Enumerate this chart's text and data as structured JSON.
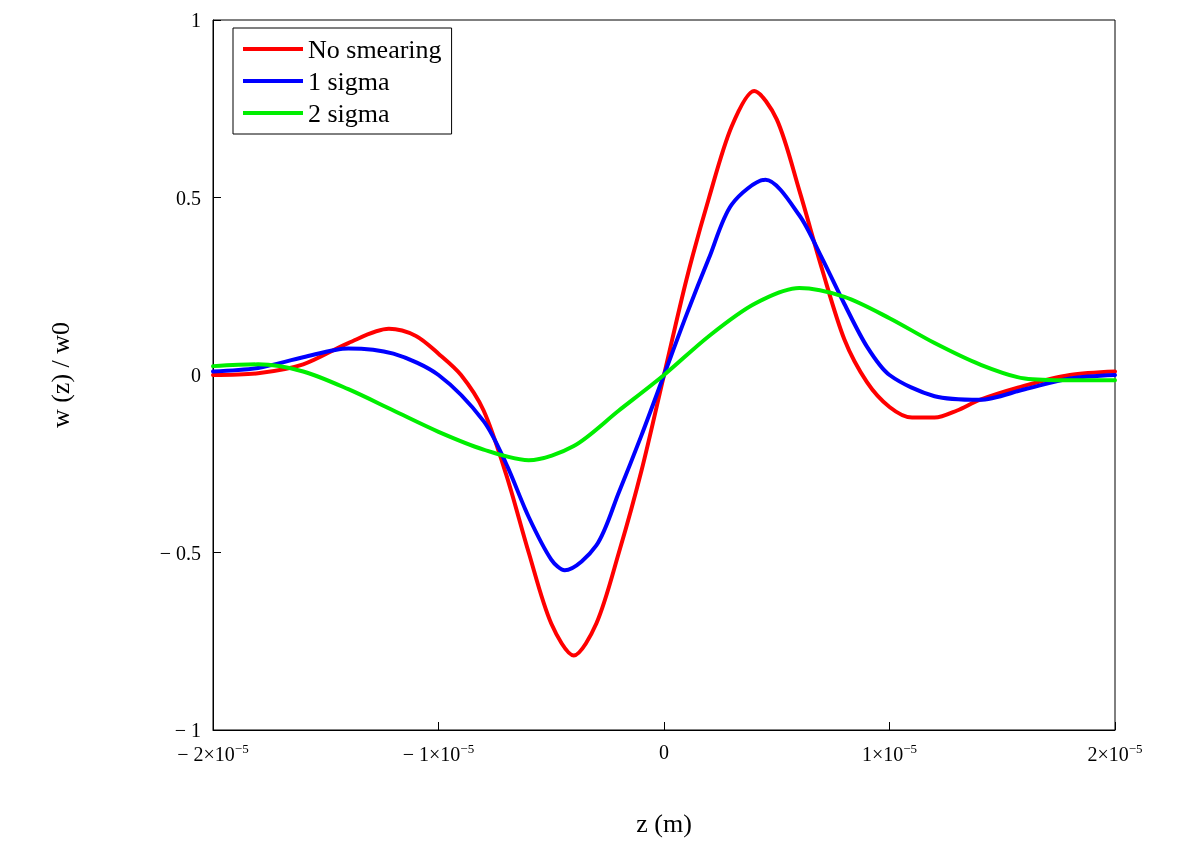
{
  "chart_data": {
    "type": "line",
    "xlabel": "z (m)",
    "ylabel": "w (z) / w0",
    "xlim": [
      -2e-05,
      2e-05
    ],
    "ylim": [
      -1,
      1
    ],
    "xticks": [
      {
        "value": -2e-05,
        "label": "− 2×10$^{−5}$"
      },
      {
        "value": -1e-05,
        "label": "− 1×10$^{−5}$"
      },
      {
        "value": 0,
        "label": "0"
      },
      {
        "value": 1e-05,
        "label": "1×10$^{−5}$"
      },
      {
        "value": 2e-05,
        "label": "2×10$^{−5}$"
      }
    ],
    "yticks": [
      {
        "value": -1,
        "label": "− 1"
      },
      {
        "value": -0.5,
        "label": "− 0.5"
      },
      0,
      0.5,
      1
    ],
    "grid": false,
    "legend": "top left",
    "marker": "none",
    "line_style": "solid",
    "series": [
      {
        "name": "No smearing",
        "color": "#ff0000",
        "x": [
          -2e-05,
          -1.8e-05,
          -1.6e-05,
          -1.4e-05,
          -1.22e-05,
          -1.1e-05,
          -1e-05,
          -9e-06,
          -8e-06,
          -7e-06,
          -6e-06,
          -5e-06,
          -4e-06,
          -3e-06,
          -2e-06,
          -1e-06,
          0,
          1e-06,
          2e-06,
          3e-06,
          4e-06,
          5e-06,
          6e-06,
          7e-06,
          8e-06,
          9e-06,
          1e-05,
          1.1e-05,
          1.2e-05,
          1.3e-05,
          1.4e-05,
          1.6e-05,
          1.8e-05,
          2e-05
        ],
        "values": [
          0,
          0.005,
          0.03,
          0.09,
          0.13,
          0.11,
          0.06,
          0,
          -0.1,
          -0.28,
          -0.5,
          -0.7,
          -0.79,
          -0.7,
          -0.5,
          -0.27,
          0,
          0.27,
          0.5,
          0.7,
          0.8,
          0.72,
          0.52,
          0.3,
          0.1,
          -0.02,
          -0.09,
          -0.12,
          -0.12,
          -0.1,
          -0.07,
          -0.03,
          0,
          0.01
        ]
      },
      {
        "name": "1 sigma",
        "color": "#0000ff",
        "x": [
          -2e-05,
          -1.8e-05,
          -1.6e-05,
          -1.4e-05,
          -1.2e-05,
          -1e-05,
          -8e-06,
          -7e-06,
          -6e-06,
          -5e-06,
          -4.4e-06,
          -3e-06,
          -2e-06,
          -1e-06,
          0,
          1e-06,
          2e-06,
          3e-06,
          4.5e-06,
          6e-06,
          7e-06,
          8e-06,
          9e-06,
          1e-05,
          1.2e-05,
          1.4e-05,
          1.6e-05,
          1.8e-05,
          2e-05
        ],
        "values": [
          0.01,
          0.02,
          0.05,
          0.075,
          0.06,
          0,
          -0.13,
          -0.25,
          -0.4,
          -0.52,
          -0.55,
          -0.48,
          -0.33,
          -0.17,
          0,
          0.17,
          0.33,
          0.48,
          0.55,
          0.45,
          0.33,
          0.2,
          0.08,
          0,
          -0.06,
          -0.07,
          -0.04,
          -0.01,
          0
        ]
      },
      {
        "name": "2 sigma",
        "color": "#00ee00",
        "x": [
          -2e-05,
          -1.8e-05,
          -1.6e-05,
          -1.4e-05,
          -1.2e-05,
          -1e-05,
          -8e-06,
          -6e-06,
          -4e-06,
          -2e-06,
          0,
          2e-06,
          4e-06,
          6e-06,
          8e-06,
          1e-05,
          1.2e-05,
          1.4e-05,
          1.6e-05,
          1.8e-05,
          2e-05
        ],
        "values": [
          0.025,
          0.03,
          0.01,
          -0.04,
          -0.1,
          -0.16,
          -0.21,
          -0.24,
          -0.2,
          -0.1,
          0,
          0.11,
          0.2,
          0.245,
          0.22,
          0.16,
          0.09,
          0.03,
          -0.01,
          -0.015,
          -0.015
        ]
      }
    ]
  }
}
